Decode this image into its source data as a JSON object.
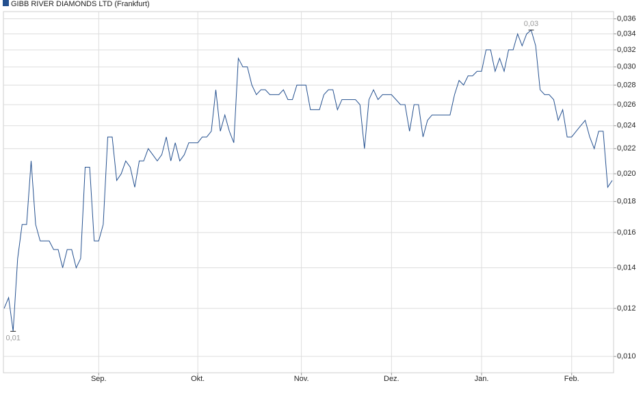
{
  "chart_data": {
    "type": "line",
    "categories": [
      null,
      null,
      null,
      null,
      null,
      null,
      null,
      null,
      null,
      null,
      null,
      null,
      null,
      null,
      null,
      null,
      null,
      null,
      null,
      null,
      null,
      "Sep.",
      null,
      null,
      null,
      null,
      null,
      null,
      null,
      null,
      null,
      null,
      null,
      null,
      null,
      null,
      null,
      null,
      null,
      null,
      null,
      null,
      null,
      "Okt.",
      null,
      null,
      null,
      null,
      null,
      null,
      null,
      null,
      null,
      null,
      null,
      null,
      null,
      null,
      null,
      null,
      null,
      null,
      null,
      null,
      null,
      null,
      "Nov.",
      null,
      null,
      null,
      null,
      null,
      null,
      null,
      null,
      null,
      null,
      null,
      null,
      null,
      null,
      null,
      null,
      null,
      null,
      null,
      "Dez.",
      null,
      null,
      null,
      null,
      null,
      null,
      null,
      null,
      null,
      null,
      null,
      null,
      null,
      null,
      null,
      null,
      null,
      null,
      null,
      "Jan.",
      null,
      null,
      null,
      null,
      null,
      null,
      null,
      null,
      null,
      null,
      null,
      null,
      null,
      null,
      null,
      null,
      null,
      null,
      null,
      "Feb.",
      null,
      null,
      null,
      null,
      null,
      null,
      null,
      null,
      null
    ],
    "series": [
      {
        "name": "GIBB RIVER DIAMONDS LTD (Frankfurt)",
        "color": "#24508f",
        "values": [
          0.012,
          0.0125,
          0.011,
          0.0145,
          0.0165,
          0.0165,
          0.021,
          0.0165,
          0.0155,
          0.0155,
          0.0155,
          0.015,
          0.015,
          0.014,
          0.015,
          0.015,
          0.014,
          0.0145,
          0.0205,
          0.0205,
          0.0155,
          0.0155,
          0.0165,
          0.023,
          0.023,
          0.0195,
          0.02,
          0.021,
          0.0205,
          0.019,
          0.021,
          0.021,
          0.022,
          0.0215,
          0.021,
          0.0215,
          0.023,
          0.021,
          0.0225,
          0.021,
          0.0215,
          0.0225,
          0.0225,
          0.0225,
          0.023,
          0.023,
          0.0235,
          0.0275,
          0.0235,
          0.025,
          0.0235,
          0.0225,
          0.031,
          0.03,
          0.03,
          0.028,
          0.027,
          0.0275,
          0.0275,
          0.027,
          0.027,
          0.027,
          0.0275,
          0.0265,
          0.0265,
          0.028,
          0.028,
          0.028,
          0.0255,
          0.0255,
          0.0255,
          0.027,
          0.0275,
          0.0275,
          0.0255,
          0.0265,
          0.0265,
          0.0265,
          0.0265,
          0.026,
          0.022,
          0.0265,
          0.0275,
          0.0265,
          0.027,
          0.027,
          0.027,
          0.0265,
          0.026,
          0.026,
          0.0235,
          0.026,
          0.026,
          0.023,
          0.0245,
          0.025,
          0.025,
          0.025,
          0.025,
          0.025,
          0.027,
          0.0285,
          0.028,
          0.029,
          0.029,
          0.0295,
          0.0295,
          0.032,
          0.032,
          0.0295,
          0.031,
          0.0295,
          0.032,
          0.032,
          0.034,
          0.0325,
          0.034,
          0.0345,
          0.0325,
          0.0275,
          0.027,
          0.027,
          0.0265,
          0.0245,
          0.0255,
          0.023,
          0.023,
          0.0235,
          0.024,
          0.0245,
          0.023,
          0.022,
          0.0235,
          0.0235,
          0.019,
          0.0195
        ],
        "value_labels": [
          null,
          null,
          "0,01",
          null,
          null,
          null,
          null,
          null,
          null,
          null,
          null,
          null,
          null,
          null,
          null,
          null,
          null,
          null,
          null,
          null,
          null,
          null,
          null,
          null,
          null,
          null,
          null,
          null,
          null,
          null,
          null,
          null,
          null,
          null,
          null,
          null,
          null,
          null,
          null,
          null,
          null,
          null,
          null,
          null,
          null,
          null,
          null,
          null,
          null,
          null,
          null,
          null,
          null,
          null,
          null,
          null,
          null,
          null,
          null,
          null,
          null,
          null,
          null,
          null,
          null,
          null,
          null,
          null,
          null,
          null,
          null,
          null,
          null,
          null,
          null,
          null,
          null,
          null,
          null,
          null,
          null,
          null,
          null,
          null,
          null,
          null,
          null,
          null,
          null,
          null,
          null,
          null,
          null,
          null,
          null,
          null,
          null,
          null,
          null,
          null,
          null,
          null,
          null,
          null,
          null,
          null,
          null,
          null,
          null,
          null,
          null,
          null,
          null,
          null,
          null,
          null,
          null,
          "0,03",
          null,
          null,
          null,
          null,
          null,
          null,
          null,
          null,
          null,
          null,
          null,
          null,
          null,
          null,
          null,
          null,
          null,
          null
        ]
      }
    ],
    "ylim": [
      0.0094,
      0.037
    ],
    "log_y": true,
    "y_axis_side": "right",
    "grid": true,
    "yticks": [
      {
        "value": 0.01,
        "label": "0,010"
      },
      {
        "value": 0.012,
        "label": "0,012"
      },
      {
        "value": 0.014,
        "label": "0,014"
      },
      {
        "value": 0.016,
        "label": "0,016"
      },
      {
        "value": 0.018,
        "label": "0,018"
      },
      {
        "value": 0.02,
        "label": "0,020"
      },
      {
        "value": 0.022,
        "label": "0,022"
      },
      {
        "value": 0.024,
        "label": "0,024"
      },
      {
        "value": 0.026,
        "label": "0,026"
      },
      {
        "value": 0.028,
        "label": "0,028"
      },
      {
        "value": 0.03,
        "label": "0,030"
      },
      {
        "value": 0.032,
        "label": "0,032"
      },
      {
        "value": 0.034,
        "label": "0,034"
      },
      {
        "value": 0.036,
        "label": "0,036"
      }
    ]
  }
}
